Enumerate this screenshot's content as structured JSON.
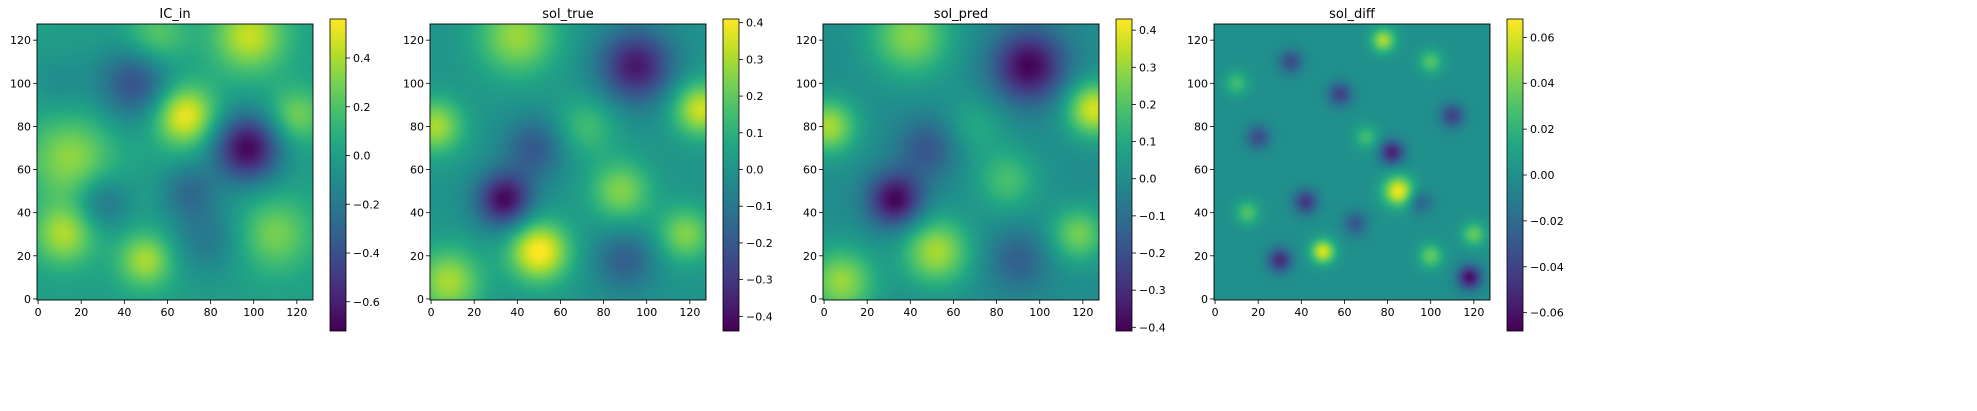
{
  "chart_data": [
    {
      "type": "heatmap",
      "title": "IC_in",
      "colormap": "viridis",
      "xlim": [
        0,
        127
      ],
      "ylim": [
        0,
        127
      ],
      "xticks": [
        "0",
        "20",
        "40",
        "60",
        "80",
        "100",
        "120"
      ],
      "yticks": [
        "0",
        "20",
        "40",
        "60",
        "80",
        "100",
        "120"
      ],
      "colorbar": {
        "min": -0.72,
        "max": 0.56,
        "ticks": [
          "0.4",
          "0.2",
          "0.0",
          "−0.2",
          "−0.4",
          "−0.6"
        ],
        "tick_values": [
          0.4,
          0.2,
          0.0,
          -0.2,
          -0.4,
          -0.6
        ]
      },
      "features": [
        {
          "x": 68,
          "y": 85,
          "value": 0.55,
          "sigma": 10
        },
        {
          "x": 97,
          "y": 70,
          "value": -0.7,
          "sigma": 11
        },
        {
          "x": 12,
          "y": 30,
          "value": 0.4,
          "sigma": 10
        },
        {
          "x": 50,
          "y": 18,
          "value": 0.4,
          "sigma": 9
        },
        {
          "x": 15,
          "y": 65,
          "value": 0.35,
          "sigma": 14
        },
        {
          "x": 98,
          "y": 122,
          "value": 0.45,
          "sigma": 12
        },
        {
          "x": 55,
          "y": 122,
          "value": 0.25,
          "sigma": 10
        },
        {
          "x": 45,
          "y": 100,
          "value": -0.4,
          "sigma": 12
        },
        {
          "x": 10,
          "y": 100,
          "value": -0.1,
          "sigma": 10
        },
        {
          "x": 110,
          "y": 30,
          "value": 0.3,
          "sigma": 12
        },
        {
          "x": 78,
          "y": 28,
          "value": -0.2,
          "sigma": 12
        },
        {
          "x": 30,
          "y": 45,
          "value": -0.25,
          "sigma": 9
        },
        {
          "x": 70,
          "y": 50,
          "value": -0.25,
          "sigma": 9
        },
        {
          "x": 120,
          "y": 85,
          "value": 0.3,
          "sigma": 9
        }
      ]
    },
    {
      "type": "heatmap",
      "title": "sol_true",
      "colormap": "viridis",
      "xlim": [
        0,
        127
      ],
      "ylim": [
        0,
        127
      ],
      "xticks": [
        "0",
        "20",
        "40",
        "60",
        "80",
        "100",
        "120"
      ],
      "yticks": [
        "0",
        "20",
        "40",
        "60",
        "80",
        "100",
        "120"
      ],
      "colorbar": {
        "min": -0.44,
        "max": 0.41,
        "ticks": [
          "0.4",
          "0.3",
          "0.2",
          "0.1",
          "0.0",
          "−0.1",
          "−0.2",
          "−0.3",
          "−0.4"
        ],
        "tick_values": [
          0.4,
          0.3,
          0.2,
          0.1,
          0.0,
          -0.1,
          -0.2,
          -0.3,
          -0.4
        ]
      },
      "features": [
        {
          "x": 50,
          "y": 22,
          "value": 0.42,
          "sigma": 10
        },
        {
          "x": 34,
          "y": 46,
          "value": -0.42,
          "sigma": 9
        },
        {
          "x": 95,
          "y": 108,
          "value": -0.38,
          "sigma": 12
        },
        {
          "x": 8,
          "y": 8,
          "value": 0.3,
          "sigma": 11
        },
        {
          "x": 2,
          "y": 80,
          "value": 0.3,
          "sigma": 9
        },
        {
          "x": 125,
          "y": 88,
          "value": 0.35,
          "sigma": 9
        },
        {
          "x": 40,
          "y": 122,
          "value": 0.28,
          "sigma": 13
        },
        {
          "x": 88,
          "y": 50,
          "value": 0.25,
          "sigma": 10
        },
        {
          "x": 72,
          "y": 80,
          "value": 0.15,
          "sigma": 10
        },
        {
          "x": 48,
          "y": 70,
          "value": -0.2,
          "sigma": 10
        },
        {
          "x": 90,
          "y": 18,
          "value": -0.18,
          "sigma": 10
        },
        {
          "x": 118,
          "y": 30,
          "value": 0.25,
          "sigma": 9
        }
      ]
    },
    {
      "type": "heatmap",
      "title": "sol_pred",
      "colormap": "viridis",
      "xlim": [
        0,
        127
      ],
      "ylim": [
        0,
        127
      ],
      "xticks": [
        "0",
        "20",
        "40",
        "60",
        "80",
        "100",
        "120"
      ],
      "yticks": [
        "0",
        "20",
        "40",
        "60",
        "80",
        "100",
        "120"
      ],
      "colorbar": {
        "min": -0.41,
        "max": 0.43,
        "ticks": [
          "0.4",
          "0.3",
          "0.2",
          "0.1",
          "0.0",
          "−0.1",
          "−0.2",
          "−0.3",
          "−0.4"
        ],
        "tick_values": [
          0.4,
          0.3,
          0.2,
          0.1,
          0.0,
          -0.1,
          -0.2,
          -0.3,
          -0.4
        ]
      },
      "features": [
        {
          "x": 52,
          "y": 22,
          "value": 0.32,
          "sigma": 11
        },
        {
          "x": 33,
          "y": 46,
          "value": -0.4,
          "sigma": 9
        },
        {
          "x": 95,
          "y": 108,
          "value": -0.4,
          "sigma": 12
        },
        {
          "x": 8,
          "y": 8,
          "value": 0.3,
          "sigma": 11
        },
        {
          "x": 2,
          "y": 80,
          "value": 0.32,
          "sigma": 9
        },
        {
          "x": 125,
          "y": 88,
          "value": 0.38,
          "sigma": 9
        },
        {
          "x": 40,
          "y": 122,
          "value": 0.28,
          "sigma": 13
        },
        {
          "x": 85,
          "y": 55,
          "value": 0.18,
          "sigma": 10
        },
        {
          "x": 70,
          "y": 80,
          "value": 0.1,
          "sigma": 10
        },
        {
          "x": 48,
          "y": 70,
          "value": -0.18,
          "sigma": 10
        },
        {
          "x": 90,
          "y": 18,
          "value": -0.15,
          "sigma": 10
        },
        {
          "x": 118,
          "y": 30,
          "value": 0.25,
          "sigma": 9
        }
      ]
    },
    {
      "type": "heatmap",
      "title": "sol_diff",
      "colormap": "viridis",
      "xlim": [
        0,
        127
      ],
      "ylim": [
        0,
        127
      ],
      "xticks": [
        "0",
        "20",
        "40",
        "60",
        "80",
        "100",
        "120"
      ],
      "yticks": [
        "0",
        "20",
        "40",
        "60",
        "80",
        "100",
        "120"
      ],
      "colorbar": {
        "min": -0.068,
        "max": 0.068,
        "ticks": [
          "0.06",
          "0.04",
          "0.02",
          "0.00",
          "−0.02",
          "−0.04",
          "−0.06"
        ],
        "tick_values": [
          0.06,
          0.04,
          0.02,
          0.0,
          -0.02,
          -0.04,
          -0.06
        ]
      },
      "features": [
        {
          "x": 85,
          "y": 50,
          "value": 0.065,
          "sigma": 5
        },
        {
          "x": 50,
          "y": 22,
          "value": 0.06,
          "sigma": 4
        },
        {
          "x": 78,
          "y": 120,
          "value": 0.05,
          "sigma": 4
        },
        {
          "x": 118,
          "y": 10,
          "value": -0.062,
          "sigma": 4
        },
        {
          "x": 82,
          "y": 68,
          "value": -0.055,
          "sigma": 4
        },
        {
          "x": 30,
          "y": 18,
          "value": -0.05,
          "sigma": 4
        },
        {
          "x": 42,
          "y": 45,
          "value": -0.045,
          "sigma": 4
        },
        {
          "x": 58,
          "y": 95,
          "value": -0.04,
          "sigma": 4
        },
        {
          "x": 100,
          "y": 20,
          "value": 0.035,
          "sigma": 4
        },
        {
          "x": 110,
          "y": 85,
          "value": -0.04,
          "sigma": 4
        },
        {
          "x": 20,
          "y": 75,
          "value": -0.035,
          "sigma": 4
        },
        {
          "x": 35,
          "y": 110,
          "value": -0.035,
          "sigma": 4
        },
        {
          "x": 120,
          "y": 30,
          "value": 0.035,
          "sigma": 4
        },
        {
          "x": 15,
          "y": 40,
          "value": 0.03,
          "sigma": 4
        },
        {
          "x": 65,
          "y": 35,
          "value": -0.03,
          "sigma": 4
        },
        {
          "x": 100,
          "y": 110,
          "value": 0.03,
          "sigma": 4
        },
        {
          "x": 70,
          "y": 75,
          "value": 0.025,
          "sigma": 4
        },
        {
          "x": 10,
          "y": 100,
          "value": 0.025,
          "sigma": 4
        },
        {
          "x": 95,
          "y": 45,
          "value": -0.025,
          "sigma": 4
        }
      ]
    }
  ]
}
